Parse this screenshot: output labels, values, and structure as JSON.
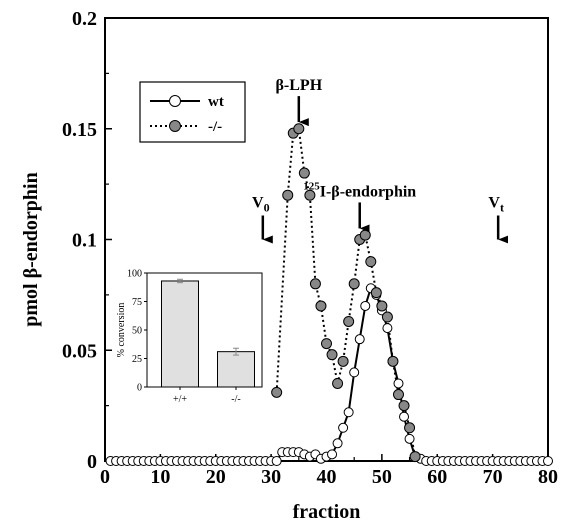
{
  "chart_data": [
    {
      "type": "line",
      "xlabel": "fraction",
      "ylabel": "pmol β-endorphin",
      "xlim": [
        0,
        80
      ],
      "ylim": [
        0,
        0.2
      ],
      "x_ticks": [
        "0",
        "10",
        "20",
        "30",
        "40",
        "50",
        "60",
        "70",
        "80"
      ],
      "y_ticks": [
        "0",
        "0.05",
        "0.1",
        "0.15",
        "0.2"
      ],
      "grid": false,
      "legend": {
        "placement": "top-left"
      },
      "series": [
        {
          "name": "wt",
          "style": "solid line, open circles",
          "x": [
            1,
            2,
            3,
            4,
            5,
            6,
            7,
            8,
            9,
            10,
            11,
            12,
            13,
            14,
            15,
            16,
            17,
            18,
            19,
            20,
            21,
            22,
            23,
            24,
            25,
            26,
            27,
            28,
            29,
            30,
            31,
            32,
            33,
            34,
            35,
            36,
            37,
            38,
            39,
            40,
            41,
            42,
            43,
            44,
            45,
            46,
            47,
            48,
            49,
            50,
            51,
            52,
            53,
            54,
            55,
            56,
            57,
            58,
            59,
            60,
            61,
            62,
            63,
            64,
            65,
            66,
            67,
            68,
            69,
            70,
            71,
            72,
            73,
            74,
            75,
            76,
            77,
            78,
            79,
            80
          ],
          "y": [
            0,
            0,
            0,
            0,
            0,
            0,
            0,
            0,
            0,
            0,
            0,
            0,
            0,
            0,
            0,
            0,
            0,
            0,
            0,
            0,
            0,
            0,
            0,
            0,
            0,
            0,
            0,
            0,
            0,
            0,
            0,
            0.004,
            0.004,
            0.004,
            0.004,
            0.003,
            0.002,
            0.003,
            0.001,
            0.002,
            0.003,
            0.008,
            0.015,
            0.022,
            0.04,
            0.055,
            0.07,
            0.078,
            0.075,
            0.068,
            0.06,
            0.045,
            0.035,
            0.02,
            0.01,
            0.002,
            0.001,
            0,
            0,
            0,
            0,
            0,
            0,
            0,
            0,
            0,
            0,
            0,
            0,
            0,
            0,
            0,
            0,
            0,
            0,
            0,
            0,
            0,
            0,
            0
          ]
        },
        {
          "name": "-/-",
          "style": "dotted line, gray filled circles",
          "x": [
            31,
            33,
            34,
            35,
            36,
            37,
            38,
            39,
            40,
            41,
            42,
            43,
            44,
            45,
            46,
            47,
            48,
            49,
            50,
            51,
            52,
            53,
            54,
            55,
            56
          ],
          "y": [
            0.031,
            0.12,
            0.148,
            0.15,
            0.13,
            0.12,
            0.08,
            0.07,
            0.053,
            0.048,
            0.035,
            0.045,
            0.063,
            0.08,
            0.1,
            0.102,
            0.09,
            0.076,
            0.07,
            0.065,
            0.045,
            0.03,
            0.025,
            0.015,
            0.002
          ]
        }
      ],
      "annotations": [
        {
          "label": "β-LPH",
          "x": 35,
          "y": 0.153
        },
        {
          "label_main": "I-β-endorphin",
          "label_sup": "125",
          "x": 46,
          "y": 0.105
        },
        {
          "label_main": "V",
          "label_sub": "0",
          "x": 28.5,
          "y": 0.1
        },
        {
          "label_main": "V",
          "label_sub": "t",
          "x": 71,
          "y": 0.1
        }
      ]
    },
    {
      "type": "bar",
      "role": "inset",
      "ylabel": "% conversion",
      "categories": [
        "+/+",
        "-/-"
      ],
      "values": [
        93,
        31
      ],
      "errors": [
        1.5,
        3
      ],
      "ylim": [
        0,
        100
      ],
      "y_ticks": [
        "0",
        "25",
        "50",
        "75",
        "100"
      ],
      "colors": {
        "bar": "#e0e0e0",
        "marker": "#888888"
      }
    }
  ]
}
